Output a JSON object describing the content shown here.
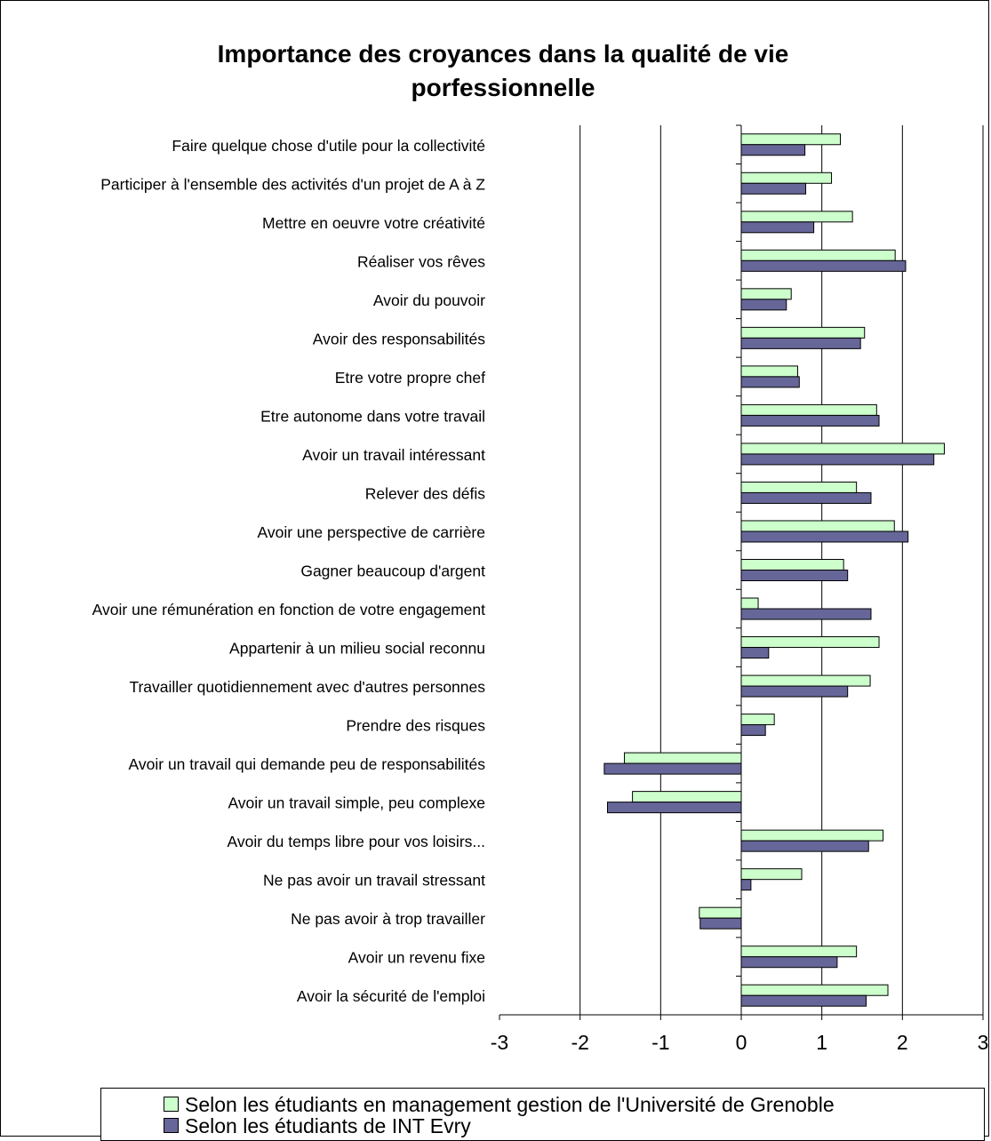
{
  "chart_data": {
    "type": "bar",
    "orientation": "horizontal",
    "title": "Importance des croyances dans la qualité de vie porfessionnelle",
    "title_lines": [
      "Importance des croyances dans la qualité de vie",
      "porfessionnelle"
    ],
    "categories": [
      "Faire quelque chose d'utile pour la collectivité",
      "Participer à l'ensemble des activités d'un projet de A à Z",
      "Mettre en oeuvre votre créativité",
      "Réaliser vos rêves",
      "Avoir du pouvoir",
      "Avoir des responsabilités",
      "Etre votre propre chef",
      "Etre autonome dans votre travail",
      "Avoir un travail intéressant",
      "Relever des défis",
      "Avoir une perspective de carrière",
      "Gagner beaucoup d'argent",
      "Avoir une rémunération en fonction de votre engagement",
      "Appartenir à un milieu social reconnu",
      "Travailler quotidiennement avec d'autres personnes",
      "Prendre des risques",
      "Avoir un travail qui demande peu de responsabilités",
      "Avoir un travail simple, peu complexe",
      "Avoir du temps libre pour vos loisirs...",
      "Ne pas avoir un travail stressant",
      "Ne pas avoir à trop travailler",
      "Avoir un revenu fixe",
      "Avoir la sécurité de l'emploi"
    ],
    "series": [
      {
        "name": "Selon les étudiants en management gestion de l'Université de Grenoble",
        "color": "#CCFFCC",
        "values": [
          1.23,
          1.12,
          1.38,
          1.91,
          0.62,
          1.53,
          0.7,
          1.68,
          2.52,
          1.43,
          1.9,
          1.27,
          0.21,
          1.71,
          1.6,
          0.41,
          -1.45,
          -1.35,
          1.76,
          0.75,
          -0.52,
          1.43,
          1.82
        ]
      },
      {
        "name": "Selon les étudiants de INT Evry",
        "color": "#666699",
        "values": [
          0.79,
          0.8,
          0.9,
          2.04,
          0.56,
          1.48,
          0.72,
          1.71,
          2.39,
          1.61,
          2.07,
          1.32,
          1.61,
          0.34,
          1.32,
          0.3,
          -1.7,
          -1.66,
          1.58,
          0.12,
          -0.51,
          1.19,
          1.55
        ]
      }
    ],
    "xlim": [
      -3,
      3
    ],
    "xticks": [
      "-3",
      "-2",
      "-1",
      "0",
      "1",
      "2",
      "3"
    ],
    "grid": "vertical major gridlines",
    "legend_position": "bottom"
  }
}
